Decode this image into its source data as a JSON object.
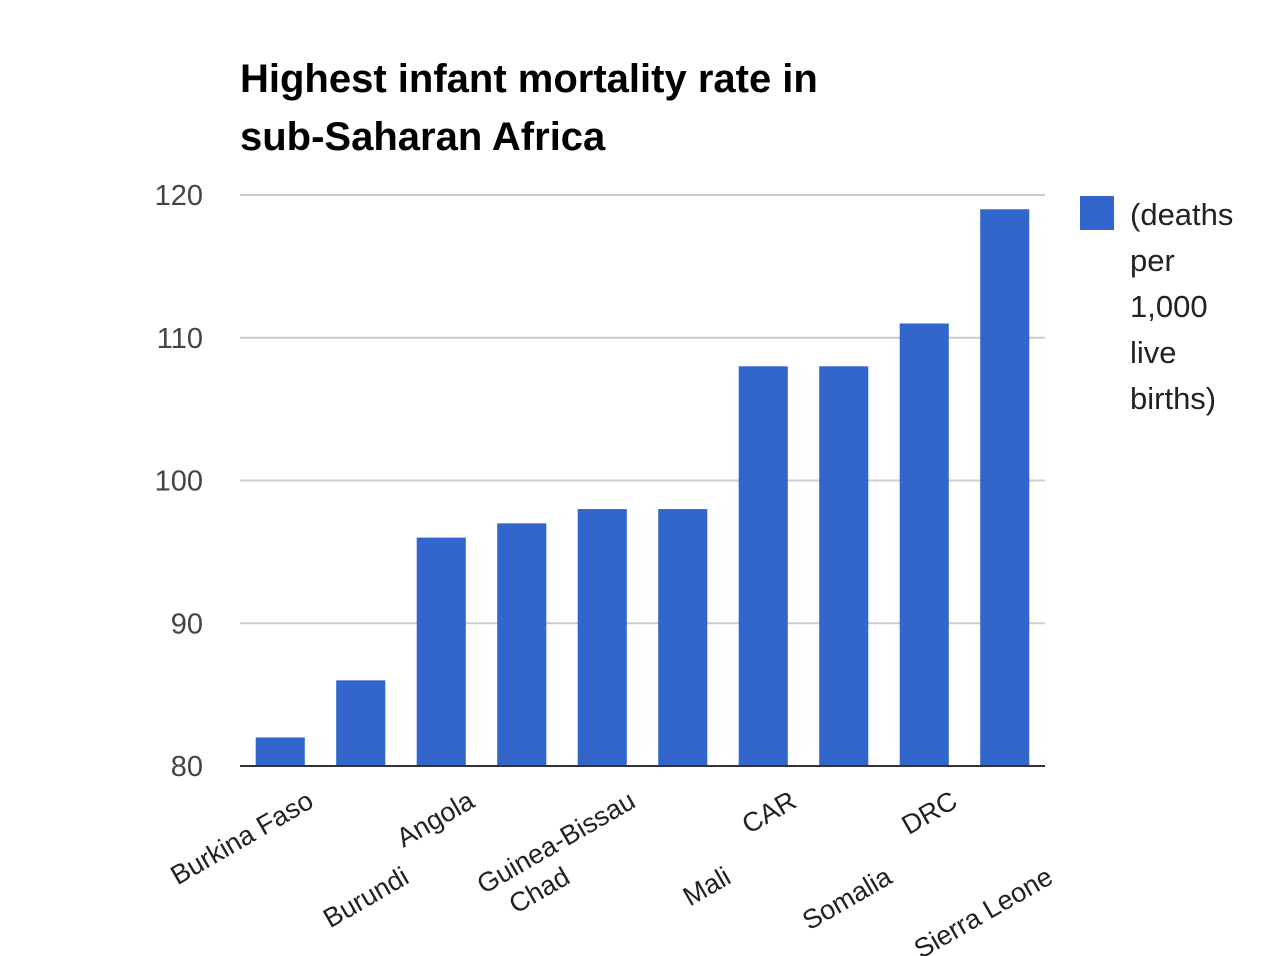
{
  "colors": {
    "bar": "#3366cc",
    "grid": "#cccccc",
    "axis": "#333333"
  },
  "chart_data": {
    "type": "bar",
    "title_lines": [
      "Highest infant mortality rate in",
      "sub-Saharan Africa"
    ],
    "xlabel": "",
    "ylabel": "",
    "categories": [
      "Burkina Faso",
      "Burundi",
      "Angola",
      "Chad",
      "Guinea-Bissau",
      "Mali",
      "CAR",
      "Somalia",
      "DRC",
      "Sierra Leone"
    ],
    "series": [
      {
        "name": "(deaths per 1,000 live births)",
        "values": [
          82,
          86,
          96,
          97,
          98,
          98,
          108,
          108,
          111,
          119
        ]
      }
    ],
    "ylim": [
      80,
      120
    ],
    "yticks": [
      80,
      90,
      100,
      110,
      120
    ],
    "grid": true,
    "legend_position": "right"
  }
}
